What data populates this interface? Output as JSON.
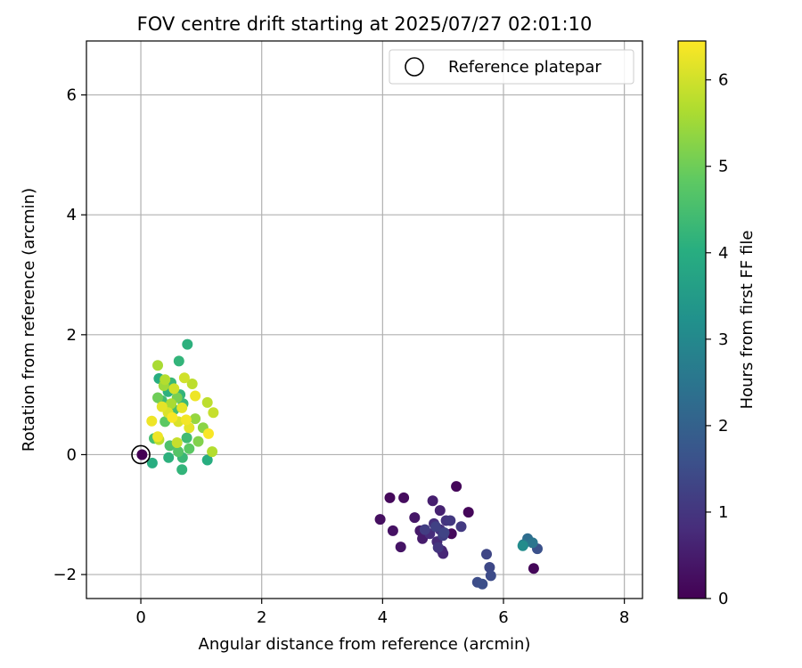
{
  "chart_data": {
    "type": "scatter",
    "title": "FOV centre drift starting at 2025/07/27 02:01:10",
    "xlabel": "Angular distance from reference (arcmin)",
    "ylabel": "Rotation from reference (arcmin)",
    "xlim": [
      -0.9,
      8.3
    ],
    "ylim": [
      -2.4,
      6.9
    ],
    "xticks": [
      0,
      2,
      4,
      6,
      8
    ],
    "yticks": [
      -2,
      0,
      2,
      4,
      6
    ],
    "xtick_labels": [
      "0",
      "2",
      "4",
      "6",
      "8"
    ],
    "ytick_labels": [
      "−2",
      "0",
      "2",
      "4",
      "6"
    ],
    "grid": true,
    "legend": {
      "placement": "top-right",
      "entries": [
        "Reference platepar"
      ]
    },
    "reference_point": {
      "x": 0.0,
      "y": 0.0
    },
    "colorbar": {
      "label": "Hours from first FF file",
      "colormap": "viridis",
      "range": [
        0,
        6.45
      ],
      "ticks": [
        0,
        1,
        2,
        3,
        4,
        5,
        6
      ],
      "tick_labels": [
        "0",
        "1",
        "2",
        "3",
        "4",
        "5",
        "6"
      ]
    },
    "series": [
      {
        "columns": [
          "x",
          "y",
          "hours"
        ],
        "points": [
          [
            0.02,
            0.0,
            0.0
          ],
          [
            5.22,
            -0.53,
            0.1
          ],
          [
            4.12,
            -0.72,
            0.15
          ],
          [
            4.35,
            -0.72,
            0.2
          ],
          [
            3.96,
            -1.08,
            0.25
          ],
          [
            4.17,
            -1.27,
            0.3
          ],
          [
            4.3,
            -1.54,
            0.35
          ],
          [
            4.53,
            -1.05,
            0.4
          ],
          [
            4.62,
            -1.27,
            0.45
          ],
          [
            4.66,
            -1.4,
            0.5
          ],
          [
            4.83,
            -0.77,
            0.55
          ],
          [
            4.95,
            -0.93,
            0.6
          ],
          [
            5.42,
            -0.96,
            0.1
          ],
          [
            5.14,
            -1.32,
            0.15
          ],
          [
            6.5,
            -1.9,
            0.1
          ],
          [
            4.98,
            -1.6,
            0.65
          ],
          [
            5.0,
            -1.65,
            0.7
          ],
          [
            4.9,
            -1.45,
            0.75
          ],
          [
            4.78,
            -1.32,
            0.8
          ],
          [
            4.85,
            -1.15,
            0.85
          ],
          [
            4.95,
            -1.25,
            0.9
          ],
          [
            5.05,
            -1.1,
            0.95
          ],
          [
            4.92,
            -1.55,
            1.0
          ],
          [
            5.12,
            -1.1,
            1.05
          ],
          [
            5.3,
            -1.2,
            1.1
          ],
          [
            4.7,
            -1.25,
            1.15
          ],
          [
            5.0,
            -1.35,
            1.2
          ],
          [
            4.88,
            -1.2,
            1.25
          ],
          [
            5.02,
            -1.3,
            1.3
          ],
          [
            5.72,
            -1.66,
            1.35
          ],
          [
            5.77,
            -1.88,
            1.4
          ],
          [
            5.79,
            -2.02,
            1.45
          ],
          [
            5.57,
            -2.13,
            1.5
          ],
          [
            5.65,
            -2.16,
            1.55
          ],
          [
            6.56,
            -1.57,
            1.6
          ],
          [
            6.4,
            -1.4,
            2.3
          ],
          [
            6.48,
            -1.47,
            2.5
          ],
          [
            6.33,
            -1.5,
            2.6
          ],
          [
            6.32,
            -1.52,
            3.1
          ],
          [
            0.77,
            1.84,
            4.1
          ],
          [
            0.63,
            1.56,
            4.2
          ],
          [
            0.3,
            1.27,
            4.0
          ],
          [
            0.5,
            1.2,
            4.3
          ],
          [
            0.65,
            1.0,
            4.2
          ],
          [
            0.35,
            0.9,
            4.4
          ],
          [
            0.45,
            1.05,
            4.1
          ],
          [
            0.55,
            0.75,
            4.5
          ],
          [
            0.7,
            0.85,
            4.3
          ],
          [
            0.22,
            0.27,
            4.5
          ],
          [
            0.19,
            -0.14,
            4.0
          ],
          [
            0.46,
            -0.05,
            4.1
          ],
          [
            0.68,
            -0.25,
            4.2
          ],
          [
            0.69,
            -0.05,
            4.3
          ],
          [
            0.76,
            0.28,
            4.4
          ],
          [
            1.1,
            -0.09,
            4.0
          ],
          [
            0.48,
            0.15,
            4.6
          ],
          [
            0.62,
            0.05,
            4.7
          ],
          [
            0.8,
            0.1,
            4.8
          ],
          [
            0.4,
            0.55,
            4.8
          ],
          [
            0.28,
            0.95,
            5.0
          ],
          [
            0.6,
            0.95,
            5.1
          ],
          [
            0.95,
            0.22,
            5.2
          ],
          [
            1.03,
            0.45,
            5.3
          ],
          [
            0.9,
            0.6,
            5.4
          ],
          [
            0.38,
            1.15,
            5.5
          ],
          [
            0.5,
            0.85,
            5.6
          ],
          [
            0.28,
            1.49,
            5.6
          ],
          [
            0.4,
            1.25,
            5.7
          ],
          [
            0.85,
            1.18,
            5.8
          ],
          [
            1.1,
            0.87,
            5.8
          ],
          [
            1.2,
            0.7,
            5.9
          ],
          [
            1.18,
            0.05,
            5.7
          ],
          [
            0.3,
            0.25,
            5.8
          ],
          [
            0.6,
            0.2,
            5.9
          ],
          [
            0.72,
            1.28,
            6.0
          ],
          [
            0.55,
            1.1,
            6.0
          ],
          [
            0.45,
            0.7,
            6.1
          ],
          [
            0.62,
            0.55,
            6.1
          ],
          [
            0.8,
            0.45,
            6.2
          ],
          [
            0.35,
            0.8,
            6.2
          ],
          [
            0.18,
            0.56,
            6.3
          ],
          [
            0.9,
            0.98,
            6.3
          ],
          [
            0.75,
            0.58,
            6.35
          ],
          [
            1.12,
            0.35,
            6.4
          ],
          [
            0.52,
            0.62,
            6.4
          ],
          [
            0.28,
            0.3,
            6.3
          ],
          [
            0.68,
            0.78,
            6.2
          ]
        ]
      }
    ]
  }
}
